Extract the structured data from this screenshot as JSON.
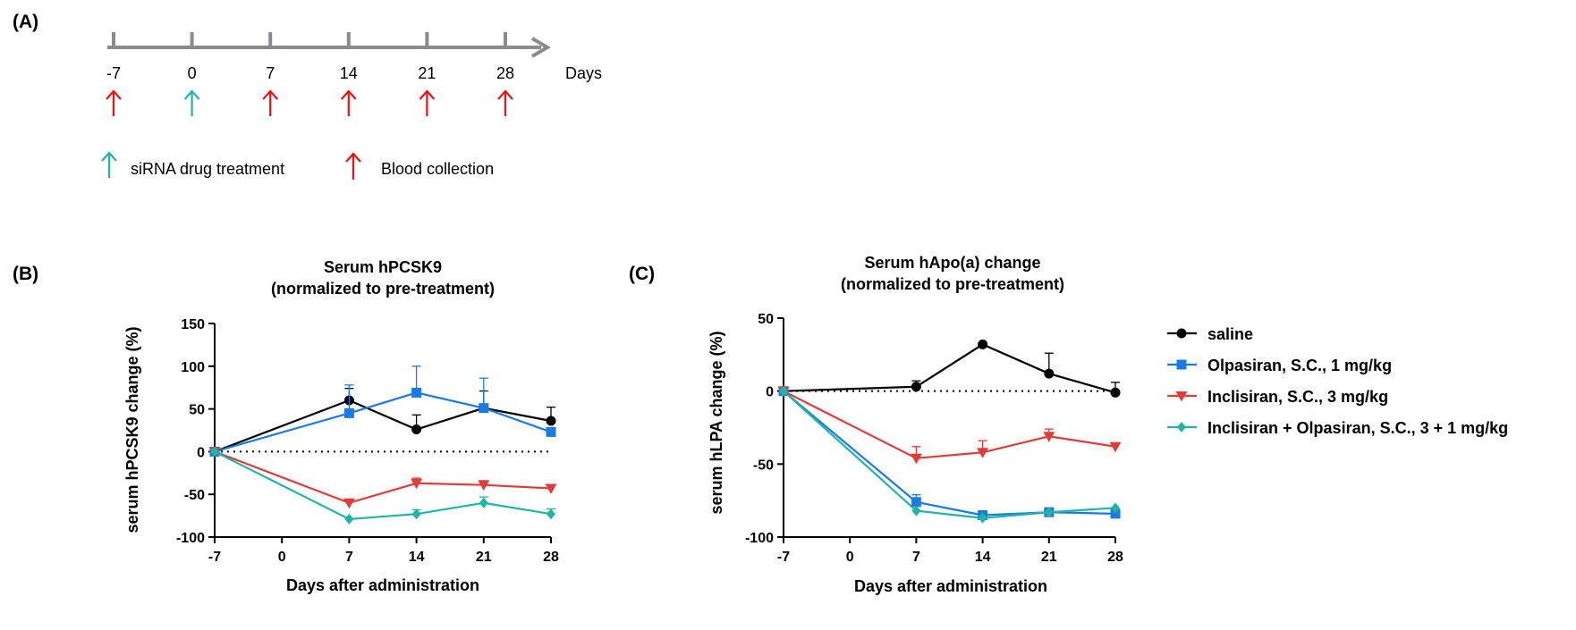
{
  "colors": {
    "saline": "#000000",
    "olpasiran": "#1a7be6",
    "inclisiran": "#e03c3c",
    "combo": "#1fb5a6",
    "timeline_axis": "#8a8a90",
    "drug_arrow": "#1fb5a6",
    "blood_arrow": "#ee1111"
  },
  "panel_a": {
    "letter": "(A)",
    "days": [
      "-7",
      "0",
      "7",
      "14",
      "21",
      "28"
    ],
    "unit_label": "Days",
    "arrows": [
      "blood-collection",
      "drug-treatment",
      "blood-collection",
      "blood-collection",
      "blood-collection",
      "blood-collection"
    ],
    "legend": {
      "drug_treatment": "siRNA drug treatment",
      "blood_collection": "Blood collection"
    }
  },
  "chart_data": [
    {
      "type": "line",
      "letter": "(B)",
      "title_line1": "Serum hPCSK9",
      "title_line2": "(normalized to pre-treatment)",
      "xlabel": "Days after administration",
      "ylabel": "serum hPCSK9 change (%)",
      "x_ticks": [
        -7,
        0,
        7,
        14,
        21,
        28
      ],
      "x_tick_labels": [
        "-7",
        "0",
        "7",
        "14",
        "21",
        "28"
      ],
      "y_ticks": [
        -100,
        -50,
        0,
        50,
        100,
        150
      ],
      "y_tick_labels": [
        "-100",
        "-50",
        "0",
        "50",
        "100",
        "150"
      ],
      "xlim": [
        -7,
        28
      ],
      "ylim": [
        -100,
        150
      ],
      "reference_line_y": 0,
      "series": [
        {
          "key": "saline",
          "marker": "circle",
          "x": [
            -7,
            7,
            14,
            21,
            28
          ],
          "y": [
            0,
            60,
            26,
            51,
            36
          ],
          "err": [
            0,
            14,
            17,
            20,
            16
          ]
        },
        {
          "key": "olpasiran",
          "marker": "square",
          "x": [
            -7,
            7,
            14,
            21,
            28
          ],
          "y": [
            0,
            45,
            69,
            51,
            23
          ],
          "err": [
            0,
            33,
            31,
            35,
            0
          ]
        },
        {
          "key": "inclisiran",
          "marker": "triangle-down",
          "x": [
            -7,
            7,
            14,
            21,
            28
          ],
          "y": [
            0,
            -60,
            -37,
            -39,
            -43
          ],
          "err": [
            0,
            0,
            6,
            5,
            0
          ]
        },
        {
          "key": "combo",
          "marker": "diamond",
          "x": [
            -7,
            7,
            14,
            21,
            28
          ],
          "y": [
            0,
            -79,
            -73,
            -60,
            -73
          ],
          "err": [
            0,
            0,
            5,
            7,
            6
          ]
        }
      ]
    },
    {
      "type": "line",
      "letter": "(C)",
      "title_line1": "Serum hApo(a) change",
      "title_line2": "(normalized to pre-treatment)",
      "xlabel": "Days after administration",
      "ylabel": "serum hLPA change (%)",
      "x_ticks": [
        -7,
        0,
        7,
        14,
        21,
        28
      ],
      "x_tick_labels": [
        "-7",
        "0",
        "7",
        "14",
        "21",
        "28"
      ],
      "y_ticks": [
        -100,
        -50,
        0,
        50
      ],
      "y_tick_labels": [
        "-100",
        "-50",
        "0",
        "50"
      ],
      "xlim": [
        -7,
        28
      ],
      "ylim": [
        -100,
        50
      ],
      "reference_line_y": 0,
      "series": [
        {
          "key": "saline",
          "marker": "circle",
          "x": [
            -7,
            7,
            14,
            21,
            28
          ],
          "y": [
            0,
            3,
            32,
            12,
            -1
          ],
          "err": [
            0,
            4,
            0,
            14,
            7
          ]
        },
        {
          "key": "olpasiran",
          "marker": "square",
          "x": [
            -7,
            7,
            14,
            21,
            28
          ],
          "y": [
            0,
            -76,
            -85,
            -83,
            -84
          ],
          "err": [
            0,
            5,
            0,
            3,
            0
          ]
        },
        {
          "key": "inclisiran",
          "marker": "triangle-down",
          "x": [
            -7,
            7,
            14,
            21,
            28
          ],
          "y": [
            0,
            -46,
            -42,
            -31,
            -38
          ],
          "err": [
            0,
            8,
            8,
            5,
            0
          ]
        },
        {
          "key": "combo",
          "marker": "diamond",
          "x": [
            -7,
            7,
            14,
            21,
            28
          ],
          "y": [
            0,
            -82,
            -87,
            -83,
            -80
          ],
          "err": [
            0,
            0,
            0,
            0,
            0
          ]
        }
      ]
    }
  ],
  "legend": [
    {
      "key": "saline",
      "marker": "circle",
      "label": "saline"
    },
    {
      "key": "olpasiran",
      "marker": "square",
      "label": "Olpasiran, S.C., 1 mg/kg"
    },
    {
      "key": "inclisiran",
      "marker": "triangle-down",
      "label": "Inclisiran, S.C., 3 mg/kg"
    },
    {
      "key": "combo",
      "marker": "diamond",
      "label": "Inclisiran + Olpasiran, S.C., 3 + 1 mg/kg"
    }
  ]
}
